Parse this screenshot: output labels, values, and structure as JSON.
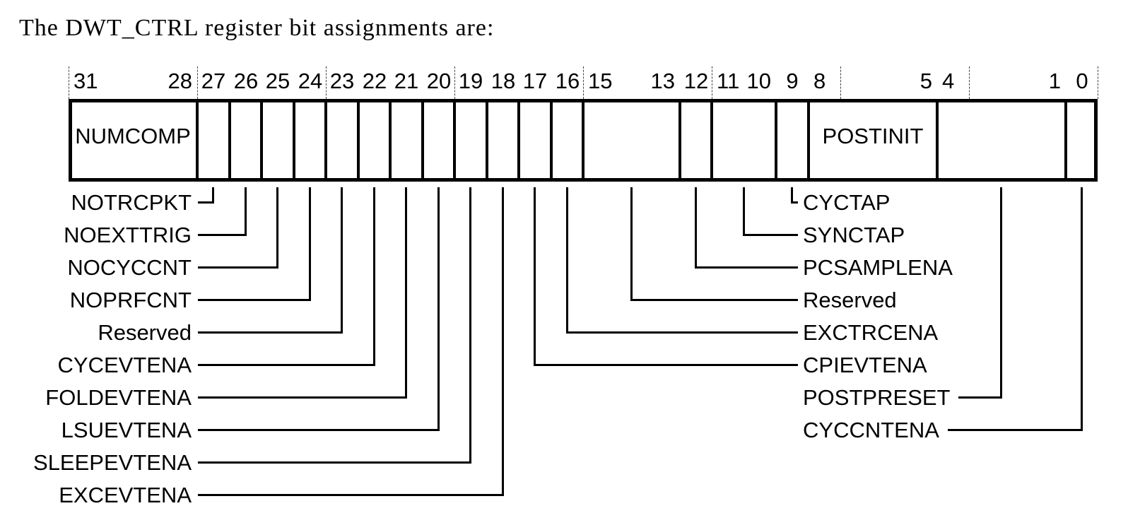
{
  "title": "The DWT_CTRL register bit assignments are:",
  "register": {
    "name": "DWT_CTRL",
    "fields": [
      {
        "msb": 31,
        "lsb": 28,
        "label": "NUMCOMP"
      },
      {
        "msb": 27,
        "lsb": 27
      },
      {
        "msb": 26,
        "lsb": 26
      },
      {
        "msb": 25,
        "lsb": 25
      },
      {
        "msb": 24,
        "lsb": 24
      },
      {
        "msb": 23,
        "lsb": 23
      },
      {
        "msb": 22,
        "lsb": 22
      },
      {
        "msb": 21,
        "lsb": 21
      },
      {
        "msb": 20,
        "lsb": 20
      },
      {
        "msb": 19,
        "lsb": 19
      },
      {
        "msb": 18,
        "lsb": 18
      },
      {
        "msb": 17,
        "lsb": 17
      },
      {
        "msb": 16,
        "lsb": 16
      },
      {
        "msb": 15,
        "lsb": 13
      },
      {
        "msb": 12,
        "lsb": 12
      },
      {
        "msb": 11,
        "lsb": 10
      },
      {
        "msb": 9,
        "lsb": 9
      },
      {
        "msb": 8,
        "lsb": 5,
        "label": "POSTINIT"
      },
      {
        "msb": 4,
        "lsb": 1
      },
      {
        "msb": 0,
        "lsb": 0
      }
    ]
  },
  "callouts_left": [
    {
      "label": "NOTRCPKT",
      "msb": 27,
      "lsb": 27
    },
    {
      "label": "NOEXTTRIG",
      "msb": 26,
      "lsb": 26
    },
    {
      "label": "NOCYCCNT",
      "msb": 25,
      "lsb": 25
    },
    {
      "label": "NOPRFCNT",
      "msb": 24,
      "lsb": 24
    },
    {
      "label": "Reserved",
      "msb": 23,
      "lsb": 23
    },
    {
      "label": "CYCEVTENA",
      "msb": 22,
      "lsb": 22
    },
    {
      "label": "FOLDEVTENA",
      "msb": 21,
      "lsb": 21
    },
    {
      "label": "LSUEVTENA",
      "msb": 20,
      "lsb": 20
    },
    {
      "label": "SLEEPEVTENA",
      "msb": 19,
      "lsb": 19
    },
    {
      "label": "EXCEVTENA",
      "msb": 18,
      "lsb": 18
    }
  ],
  "callouts_right": [
    {
      "label": "CYCTAP",
      "msb": 9,
      "lsb": 9,
      "line": "left"
    },
    {
      "label": "SYNCTAP",
      "msb": 11,
      "lsb": 10,
      "line": "left"
    },
    {
      "label": "PCSAMPLENA",
      "msb": 12,
      "lsb": 12,
      "line": "left"
    },
    {
      "label": "Reserved",
      "msb": 15,
      "lsb": 13,
      "line": "left"
    },
    {
      "label": "EXCTRCENA",
      "msb": 16,
      "lsb": 16,
      "line": "left"
    },
    {
      "label": "CPIEVTENA",
      "msb": 17,
      "lsb": 17,
      "line": "left"
    },
    {
      "label": "POSTPRESET",
      "msb": 4,
      "lsb": 1,
      "line": "right"
    },
    {
      "label": "CYCCNTENA",
      "msb": 0,
      "lsb": 0,
      "line": "right"
    }
  ]
}
